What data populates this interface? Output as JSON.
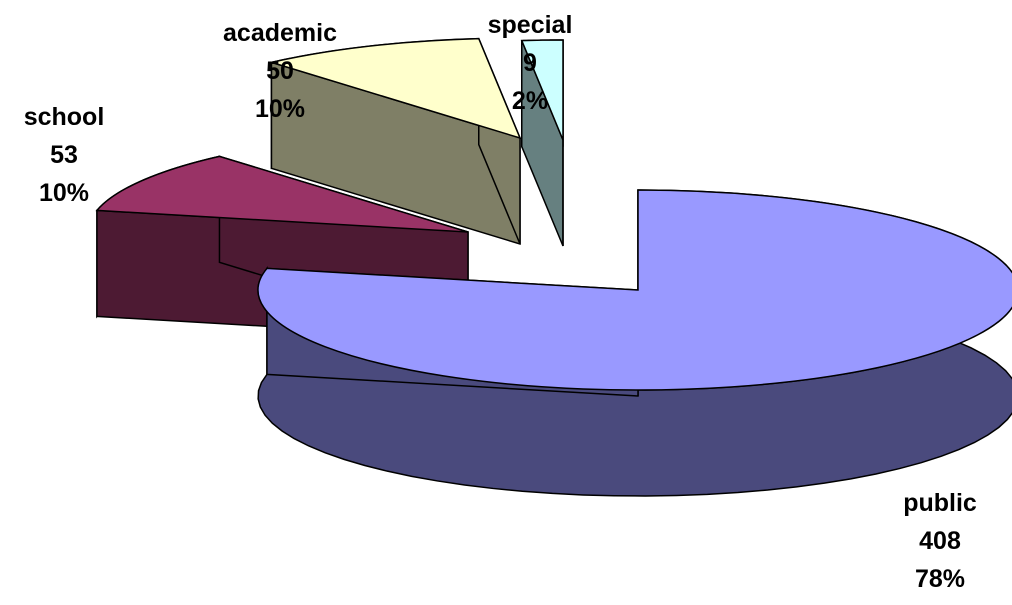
{
  "chart_data": {
    "type": "pie",
    "style": "3d-exploded",
    "title": "",
    "labels": [
      "public",
      "school",
      "academic",
      "special"
    ],
    "values": [
      408,
      53,
      50,
      9
    ],
    "percents": [
      "78%",
      "10%",
      "10%",
      "2%"
    ],
    "colors": {
      "public": {
        "top": "#9999ff",
        "side": "#4a4a7d"
      },
      "school": {
        "top": "#993366",
        "side": "#4d1a33"
      },
      "academic": {
        "top": "#ffffcc",
        "side": "#7f7f66"
      },
      "special": {
        "top": "#ccffff",
        "side": "#668080"
      }
    },
    "legend": "none"
  }
}
